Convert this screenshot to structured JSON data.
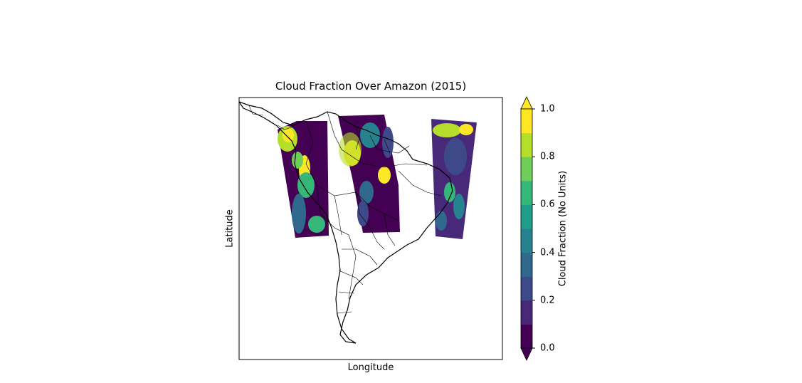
{
  "map": {
    "title": "Cloud Fraction Over Amazon (2015)",
    "xlabel": "Longitude",
    "ylabel": "Latitude",
    "region": "South America (Amazon)",
    "projection": "PlateCarree",
    "borders": "country and state boundaries",
    "swaths": [
      {
        "name": "swath-west",
        "pattern": "mostly low cloud fraction with high values near Andes/Colombia coast"
      },
      {
        "name": "swath-center",
        "pattern": "low values with bright yellow patches over Venezuela/Amazon"
      },
      {
        "name": "swath-east",
        "pattern": "mixed 0.1–0.9 values over Atlantic coast"
      }
    ]
  },
  "colorbar": {
    "label": "Cloud Fraction (No Units)",
    "ticks": [
      "0.0",
      "0.2",
      "0.4",
      "0.6",
      "0.8",
      "1.0"
    ],
    "levels": [
      0,
      0.1,
      0.2,
      0.3,
      0.4,
      0.5,
      0.6,
      0.7,
      0.8,
      0.9,
      1.0
    ],
    "colors": [
      "#440154",
      "#482878",
      "#3e4989",
      "#31688e",
      "#26828e",
      "#1f9e89",
      "#35b779",
      "#6ece58",
      "#b5de2b",
      "#fde725"
    ],
    "extend": "both"
  }
}
